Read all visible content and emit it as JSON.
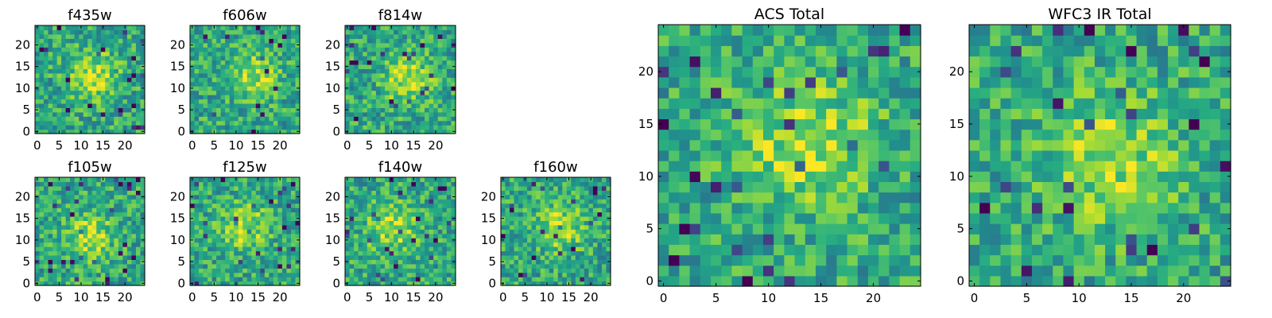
{
  "figure": {
    "description_colors": {
      "colormap_low": "#440154",
      "colormap_mid": "#21918c",
      "colormap_high": "#fde725",
      "frame": "#000000"
    }
  },
  "chart_data": [
    {
      "type": "heatmap",
      "title": "f435w",
      "xlim": [
        0,
        25
      ],
      "ylim": [
        0,
        25
      ],
      "xticks": [
        0,
        5,
        10,
        15,
        20
      ],
      "yticks": [
        0,
        5,
        10,
        15,
        20
      ],
      "grid_size": 25,
      "peak": [
        13,
        13
      ],
      "colormap": "viridis"
    },
    {
      "type": "heatmap",
      "title": "f606w",
      "xlim": [
        0,
        25
      ],
      "ylim": [
        0,
        25
      ],
      "xticks": [
        0,
        5,
        10,
        15,
        20
      ],
      "yticks": [
        0,
        5,
        10,
        15,
        20
      ],
      "grid_size": 25,
      "peak": [
        14,
        13
      ],
      "colormap": "viridis"
    },
    {
      "type": "heatmap",
      "title": "f814w",
      "xlim": [
        0,
        25
      ],
      "ylim": [
        0,
        25
      ],
      "xticks": [
        0,
        5,
        10,
        15,
        20
      ],
      "yticks": [
        0,
        5,
        10,
        15,
        20
      ],
      "grid_size": 25,
      "peak": [
        14,
        12
      ],
      "colormap": "viridis"
    },
    {
      "type": "heatmap",
      "title": "f105w",
      "xlim": [
        0,
        25
      ],
      "ylim": [
        0,
        25
      ],
      "xticks": [
        0,
        5,
        10,
        15,
        20
      ],
      "yticks": [
        0,
        5,
        10,
        15,
        20
      ],
      "grid_size": 25,
      "peak": [
        12,
        11
      ],
      "colormap": "viridis"
    },
    {
      "type": "heatmap",
      "title": "f125w",
      "xlim": [
        0,
        25
      ],
      "ylim": [
        0,
        25
      ],
      "xticks": [
        0,
        5,
        10,
        15,
        20
      ],
      "yticks": [
        0,
        5,
        10,
        15,
        20
      ],
      "grid_size": 25,
      "peak": [
        12,
        13
      ],
      "colormap": "viridis"
    },
    {
      "type": "heatmap",
      "title": "f140w",
      "xlim": [
        0,
        25
      ],
      "ylim": [
        0,
        25
      ],
      "xticks": [
        0,
        5,
        10,
        15,
        20
      ],
      "yticks": [
        0,
        5,
        10,
        15,
        20
      ],
      "grid_size": 25,
      "peak": [
        10,
        13
      ],
      "colormap": "viridis"
    },
    {
      "type": "heatmap",
      "title": "f160w",
      "xlim": [
        0,
        25
      ],
      "ylim": [
        0,
        25
      ],
      "xticks": [
        0,
        5,
        10,
        15,
        20
      ],
      "yticks": [
        0,
        5,
        10,
        15,
        20
      ],
      "grid_size": 25,
      "peak": [
        13,
        13
      ],
      "colormap": "viridis"
    },
    {
      "type": "heatmap",
      "title": "ACS Total",
      "xlim": [
        0,
        25
      ],
      "ylim": [
        0,
        25
      ],
      "xticks": [
        0,
        5,
        10,
        15,
        20
      ],
      "yticks": [
        0,
        5,
        10,
        15,
        20
      ],
      "grid_size": 25,
      "peak": [
        14,
        13
      ],
      "colormap": "viridis"
    },
    {
      "type": "heatmap",
      "title": "WFC3 IR Total",
      "xlim": [
        0,
        25
      ],
      "ylim": [
        0,
        25
      ],
      "xticks": [
        0,
        5,
        10,
        15,
        20
      ],
      "yticks": [
        0,
        5,
        10,
        15,
        20
      ],
      "grid_size": 25,
      "peak": [
        13,
        12
      ],
      "colormap": "viridis"
    }
  ]
}
